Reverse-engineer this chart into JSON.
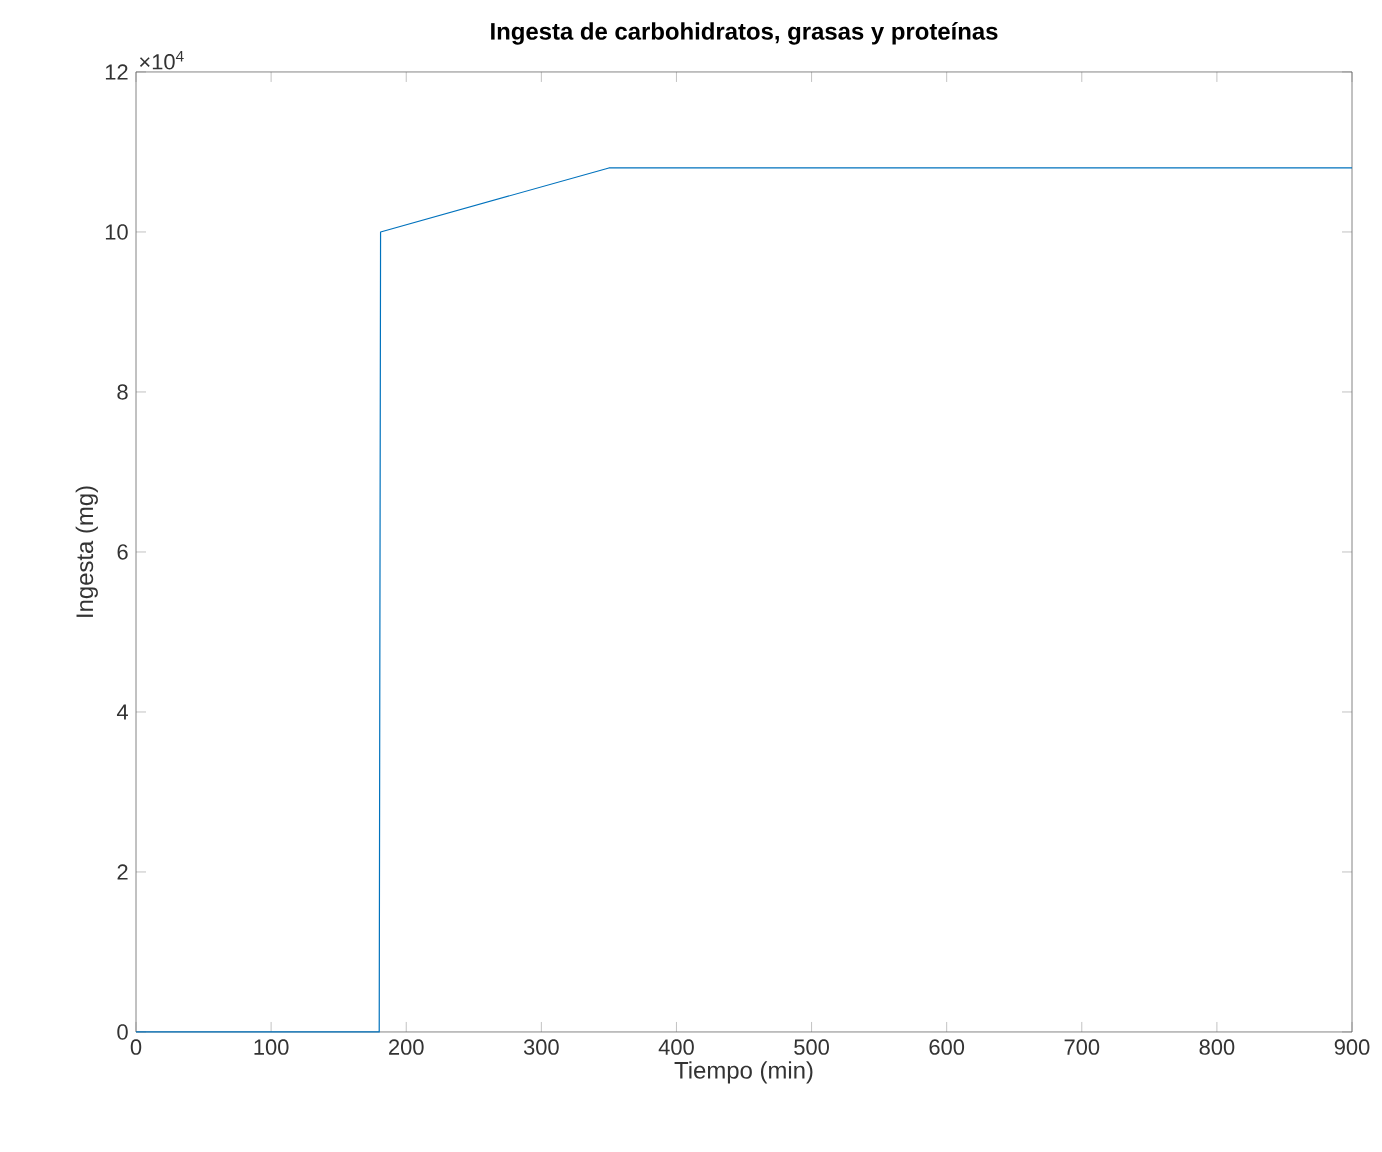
{
  "chart_data": {
    "type": "line",
    "title": "Ingesta de carbohidratos, grasas y proteínas",
    "xlabel": "Tiempo (min)",
    "ylabel": "Ingesta (mg)",
    "annotations": [
      "×10$^{4}$"
    ],
    "x": [
      0,
      180,
      181,
      350,
      900
    ],
    "series": [
      {
        "color": "#0072bd",
        "values": [
          0,
          0,
          10,
          10.8,
          10.8
        ]
      }
    ],
    "xlim": [
      0,
      900
    ],
    "ylim": [
      0,
      12
    ],
    "xticks": [
      0,
      100,
      200,
      300,
      400,
      500,
      600,
      700,
      800,
      900
    ],
    "yticks": [
      0,
      2,
      4,
      6,
      8,
      10,
      12
    ],
    "marker": "none",
    "line_style": "solid"
  }
}
